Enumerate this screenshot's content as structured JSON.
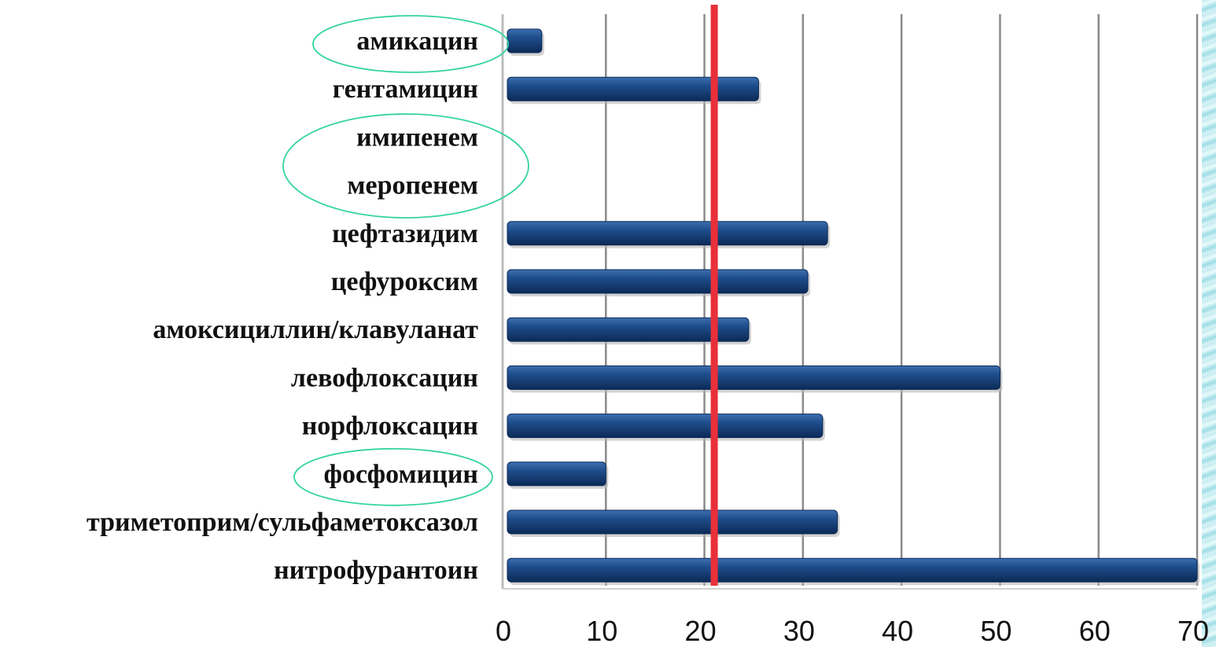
{
  "chart_data": {
    "type": "bar",
    "orientation": "horizontal",
    "title": "",
    "xlabel": "",
    "ylabel": "",
    "categories": [
      "амикацин",
      "гентамицин",
      "имипенем",
      "меропенем",
      "цефтазидим",
      "цефуроксим",
      "амоксициллин/клавуланат",
      "левофлоксацин",
      "норфлоксацин",
      "фосфомицин",
      "триметоприм/сульфаметоксазол",
      "нитрофурантоин"
    ],
    "values": [
      3.5,
      25.5,
      0,
      0,
      32.5,
      30.5,
      24.5,
      50,
      32,
      10,
      33.5,
      70
    ],
    "xlim": [
      0,
      70
    ],
    "xticks": [
      "0",
      "10",
      "20",
      "30",
      "40",
      "50",
      "60",
      "70"
    ],
    "grid": "vertical",
    "reference_line": {
      "value": 21,
      "color": "#e8303a"
    },
    "highlighted_categories": [
      "амикацин",
      "имипенем",
      "меропенем",
      "фосфомицин"
    ],
    "colors": {
      "bar": "#1f4e8c",
      "bar_dark": "#0c2a57",
      "bar_light": "#3d6fb0",
      "grid": "#8a8a8a",
      "highlight_ellipse": "#35d3a0",
      "reference_line": "#e8303a"
    }
  }
}
